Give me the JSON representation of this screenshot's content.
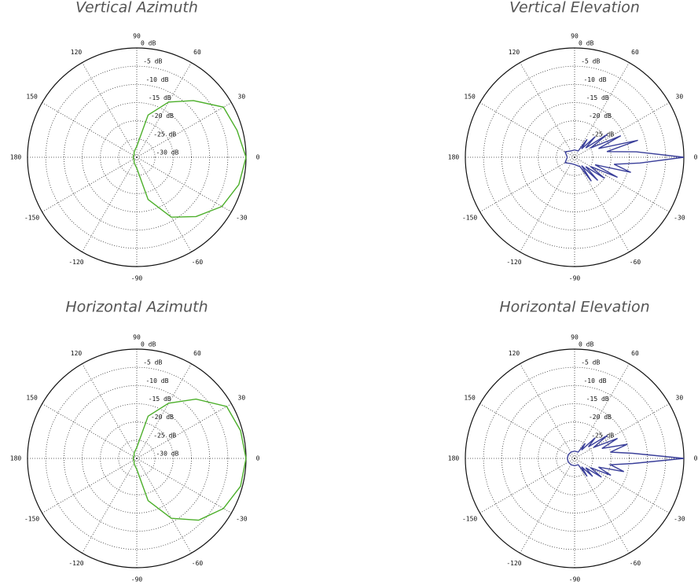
{
  "chart_data": [
    {
      "type": "polar",
      "title": "Vertical Azimuth",
      "color": "#4caf2a",
      "theta": [
        -180,
        -165,
        -150,
        -135,
        -120,
        -105,
        -90,
        -75,
        -60,
        -45,
        -30,
        -15,
        0,
        15,
        30,
        45,
        60,
        75,
        90,
        105,
        120,
        135,
        150,
        165,
        180
      ],
      "values": [
        -29,
        -29,
        -29,
        -29,
        -28.5,
        -28,
        -27,
        -18,
        -11,
        -7,
        -3,
        -1,
        0,
        -1.5,
        -2.5,
        -8,
        -12.5,
        -18,
        -27,
        -28,
        -28.5,
        -29,
        -29,
        -29,
        -29
      ],
      "rlim": [
        -30,
        0
      ],
      "rticks": [
        {
          "value": 0,
          "label": "0 dB"
        },
        {
          "value": -5,
          "label": "-5 dB"
        },
        {
          "value": -10,
          "label": "-10 dB"
        },
        {
          "value": -15,
          "label": "-15 dB"
        },
        {
          "value": -20,
          "label": "-20 dB"
        },
        {
          "value": -25,
          "label": "-25 dB"
        },
        {
          "value": -30,
          "label": "-30 dB"
        }
      ],
      "thetaticks": [
        0,
        30,
        60,
        90,
        120,
        150,
        180,
        -150,
        -120,
        -90,
        -60,
        -30
      ]
    },
    {
      "type": "polar",
      "title": "Vertical Elevation",
      "color": "#3a3f9a",
      "theta": [
        -180,
        -150,
        -120,
        -90,
        -60,
        -55,
        -50,
        -45,
        -40,
        -35,
        -30,
        -25,
        -20,
        -15,
        -10,
        -5,
        0,
        5,
        10,
        15,
        20,
        25,
        30,
        35,
        40,
        45,
        50,
        55,
        60,
        90,
        120,
        150,
        180
      ],
      "values": [
        -28,
        -27,
        -28,
        -28,
        -27,
        -22,
        -27,
        -21,
        -26,
        -20,
        -25,
        -17,
        -24,
        -14,
        -19,
        -12,
        0,
        -13,
        -21,
        -12,
        -23,
        -16,
        -25,
        -19,
        -26,
        -22,
        -27,
        -24,
        -28,
        -28,
        -28,
        -27,
        -28
      ],
      "rlim": [
        -30,
        0
      ],
      "rticks": [
        {
          "value": 0,
          "label": "0 dB"
        },
        {
          "value": -5,
          "label": "-5 dB"
        },
        {
          "value": -10,
          "label": "-10 dB"
        },
        {
          "value": -15,
          "label": "-15 dB"
        },
        {
          "value": -20,
          "label": "-20 dB"
        },
        {
          "value": -25,
          "label": "-25 dB"
        }
      ],
      "thetaticks": [
        0,
        30,
        60,
        90,
        120,
        150,
        180,
        -150,
        -120,
        -90,
        -60,
        -30
      ]
    },
    {
      "type": "polar",
      "title": "Horizontal Azimuth",
      "color": "#4caf2a",
      "theta": [
        -180,
        -165,
        -150,
        -135,
        -120,
        -105,
        -90,
        -75,
        -60,
        -45,
        -30,
        -15,
        0,
        15,
        30,
        45,
        60,
        75,
        90,
        105,
        120,
        135,
        150,
        165,
        180
      ],
      "values": [
        -29,
        -29,
        -29,
        -29,
        -28.5,
        -28,
        -27,
        -18,
        -11,
        -6,
        -2.5,
        -0.5,
        0,
        -0.5,
        -1.5,
        -7,
        -12.5,
        -18,
        -27,
        -28,
        -28.5,
        -29,
        -29,
        -29,
        -29
      ],
      "rlim": [
        -30,
        0
      ],
      "rticks": [
        {
          "value": 0,
          "label": "0 dB"
        },
        {
          "value": -5,
          "label": "-5 dB"
        },
        {
          "value": -10,
          "label": "-10 dB"
        },
        {
          "value": -15,
          "label": "-15 dB"
        },
        {
          "value": -20,
          "label": "-20 dB"
        },
        {
          "value": -25,
          "label": "-25 dB"
        },
        {
          "value": -30,
          "label": "-30 dB"
        }
      ],
      "thetaticks": [
        0,
        30,
        60,
        90,
        120,
        150,
        180,
        -150,
        -120,
        -90,
        -60,
        -30
      ]
    },
    {
      "type": "polar",
      "title": "Horizontal Elevation",
      "color": "#3a3f9a",
      "theta": [
        -180,
        -150,
        -120,
        -90,
        -60,
        -55,
        -50,
        -45,
        -40,
        -35,
        -30,
        -25,
        -20,
        -15,
        -10,
        -5,
        0,
        5,
        10,
        15,
        20,
        25,
        30,
        35,
        40,
        45,
        50,
        55,
        60,
        90,
        120,
        150,
        180
      ],
      "values": [
        -28,
        -28,
        -28,
        -28,
        -28,
        -24,
        -27,
        -23,
        -26,
        -21,
        -25,
        -19,
        -23,
        -16,
        -20,
        -14,
        0,
        -14,
        -20,
        -15,
        -22,
        -17,
        -24,
        -19,
        -25,
        -22,
        -27,
        -25,
        -28,
        -28,
        -28,
        -28,
        -28
      ],
      "rlim": [
        -30,
        0
      ],
      "rticks": [
        {
          "value": 0,
          "label": "0 dB"
        },
        {
          "value": -5,
          "label": "-5 dB"
        },
        {
          "value": -10,
          "label": "-10 dB"
        },
        {
          "value": -15,
          "label": "-15 dB"
        },
        {
          "value": -20,
          "label": "-20 dB"
        },
        {
          "value": -25,
          "label": "-25 dB"
        }
      ],
      "thetaticks": [
        0,
        30,
        60,
        90,
        120,
        150,
        180,
        -150,
        -120,
        -90,
        -60,
        -30
      ]
    }
  ]
}
